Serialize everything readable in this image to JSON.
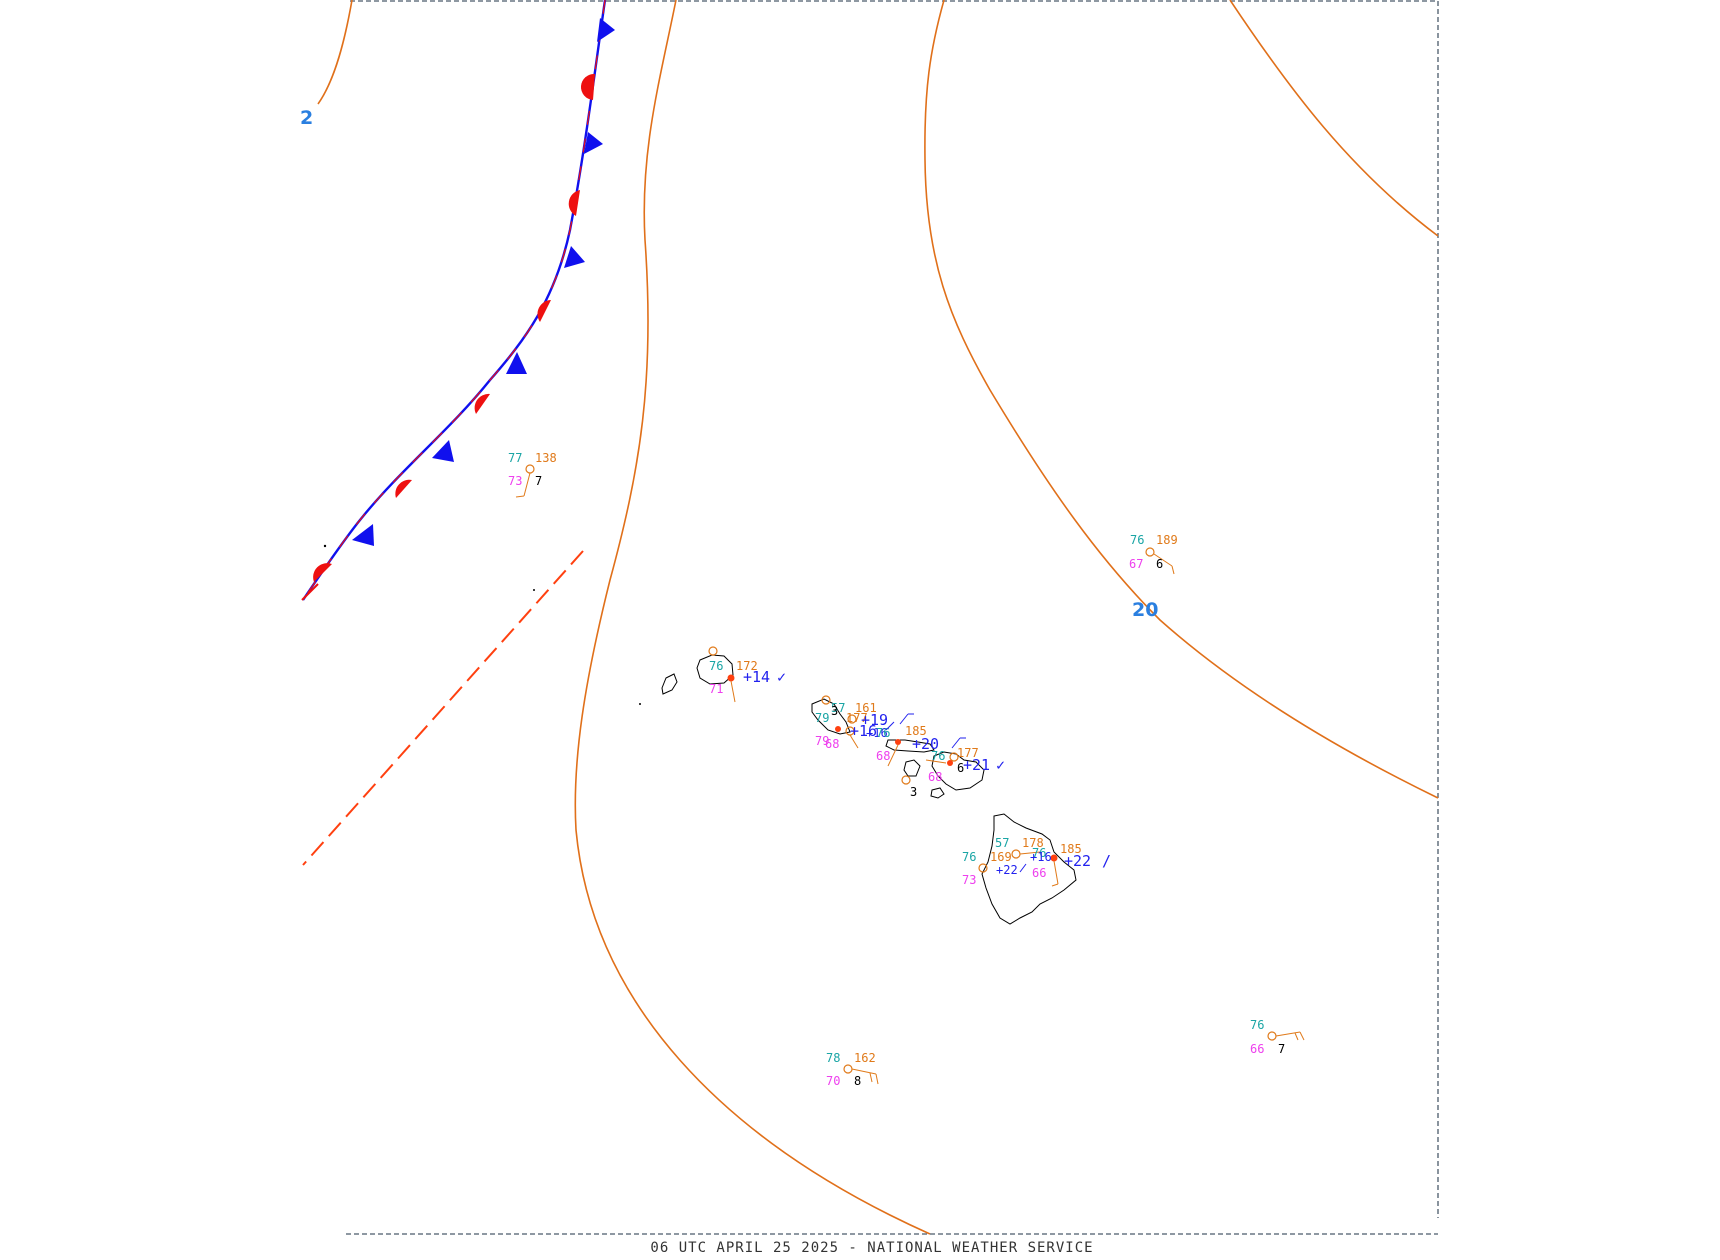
{
  "map": {
    "footer": "06 UTC APRIL 25 2025 - NATIONAL WEATHER SERVICE",
    "colors": {
      "isobar": "#e0701a",
      "isobar_label": "#2a7fe0",
      "cold_front": "#1010ee",
      "warm_front": "#ee1010",
      "trough": "#ff4010",
      "temperature": "#1aa5a5",
      "pressure": "#e07a1a",
      "dewpoint": "#ee40ee",
      "visibility": "#000000",
      "tendency": "#2222ee",
      "coastline": "#000000",
      "border": "#4a5a6a"
    },
    "isobar_labels": [
      "2",
      "20"
    ],
    "station_models": [
      {
        "name": "nw-ocean-station",
        "temp": "77",
        "pressure": "138",
        "dewpoint": "73",
        "visibility": "7"
      },
      {
        "name": "ne-ocean-station",
        "temp": "76",
        "pressure": "189",
        "dewpoint": "67",
        "visibility": "6"
      },
      {
        "name": "kauai-station",
        "temp": "76",
        "pressure": "172",
        "dewpoint": "71",
        "tendency": "+14",
        "tendency_mark": "✓"
      },
      {
        "name": "oahu-station",
        "temp": "79",
        "temp2": "57",
        "pressure": "161",
        "pressure2": "177",
        "dewpoint": "79",
        "dewpoint2": "68",
        "visibility": "3",
        "tendency": "+19",
        "tendency2": "+16",
        "tendency3": "+16",
        "temp3": "76"
      },
      {
        "name": "molokai-station",
        "pressure": "185",
        "dewpoint": "68",
        "tendency": "+20"
      },
      {
        "name": "maui-station",
        "temp": "76",
        "pressure": "177",
        "dewpoint": "68",
        "visibility": "6",
        "tendency": "+21",
        "tendency_mark": "✓",
        "visibility2": "3"
      },
      {
        "name": "big-island-station",
        "temp": "57",
        "temp2": "76",
        "temp3": "76",
        "pressure": "178",
        "pressure2": "169",
        "pressure3": "185",
        "dewpoint": "73",
        "dewpoint2": "66",
        "tendency": "+22",
        "tendency2": "+16",
        "tendency3": "+22",
        "tendency_mark": "/"
      },
      {
        "name": "se-ocean-station",
        "temp": "76",
        "dewpoint": "66",
        "visibility": "7"
      },
      {
        "name": "s-ocean-station",
        "temp": "78",
        "pressure": "162",
        "dewpoint": "70",
        "visibility": "8"
      }
    ]
  }
}
